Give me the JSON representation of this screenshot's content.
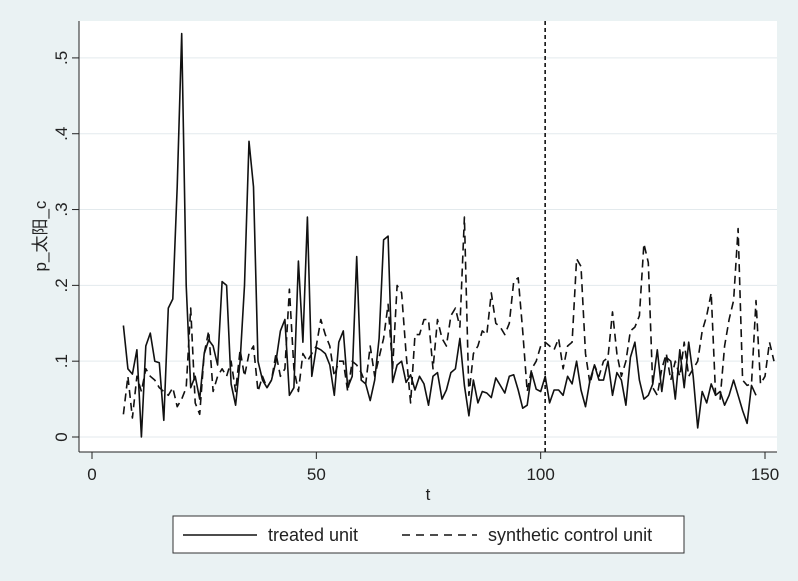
{
  "chart_data": {
    "type": "line",
    "title": "",
    "xlabel": "t",
    "ylabel": "p_太阳_c",
    "xlim": [
      0,
      150
    ],
    "ylim": [
      0,
      0.55
    ],
    "xticks": [
      0,
      50,
      100,
      150
    ],
    "xtick_labels": [
      "0",
      "50",
      "100",
      "150"
    ],
    "yticks": [
      0,
      0.1,
      0.2,
      0.3,
      0.4,
      0.5
    ],
    "ytick_labels": [
      "0",
      ".1",
      ".2",
      ".3",
      ".4",
      ".5"
    ],
    "grid": true,
    "vline": 101,
    "x_start": 7,
    "series": [
      {
        "name": "treated unit",
        "style": "solid",
        "color": "#111111",
        "values": [
          0.147,
          0.09,
          0.083,
          0.115,
          0.0,
          0.12,
          0.137,
          0.1,
          0.098,
          0.022,
          0.17,
          0.182,
          0.33,
          0.532,
          0.2,
          0.065,
          0.08,
          0.05,
          0.11,
          0.128,
          0.12,
          0.095,
          0.205,
          0.2,
          0.07,
          0.042,
          0.1,
          0.2,
          0.39,
          0.33,
          0.1,
          0.075,
          0.065,
          0.075,
          0.1,
          0.14,
          0.155,
          0.055,
          0.065,
          0.232,
          0.125,
          0.29,
          0.08,
          0.118,
          0.115,
          0.11,
          0.095,
          0.055,
          0.125,
          0.14,
          0.065,
          0.08,
          0.238,
          0.075,
          0.07,
          0.048,
          0.075,
          0.13,
          0.26,
          0.265,
          0.072,
          0.095,
          0.1,
          0.072,
          0.082,
          0.062,
          0.08,
          0.07,
          0.042,
          0.08,
          0.085,
          0.05,
          0.062,
          0.085,
          0.09,
          0.13,
          0.068,
          0.028,
          0.075,
          0.045,
          0.06,
          0.058,
          0.052,
          0.078,
          0.068,
          0.058,
          0.08,
          0.082,
          0.062,
          0.038,
          0.042,
          0.085,
          0.063,
          0.06,
          0.08,
          0.045,
          0.062,
          0.062,
          0.055,
          0.08,
          0.07,
          0.1,
          0.062,
          0.04,
          0.075,
          0.095,
          0.075,
          0.075,
          0.1,
          0.055,
          0.085,
          0.075,
          0.042,
          0.105,
          0.125,
          0.075,
          0.05,
          0.055,
          0.07,
          0.115,
          0.06,
          0.105,
          0.1,
          0.05,
          0.115,
          0.065,
          0.125,
          0.08,
          0.012,
          0.06,
          0.045,
          0.07,
          0.055,
          0.06,
          0.042,
          0.055,
          0.075,
          0.055,
          0.035,
          0.018,
          0.068,
          0.055
        ]
      },
      {
        "name": "synthetic control unit",
        "style": "dashed",
        "color": "#111111",
        "values": [
          0.03,
          0.08,
          0.025,
          0.08,
          0.06,
          0.09,
          0.08,
          0.075,
          0.065,
          0.06,
          0.055,
          0.065,
          0.04,
          0.05,
          0.065,
          0.17,
          0.045,
          0.03,
          0.11,
          0.14,
          0.06,
          0.08,
          0.09,
          0.08,
          0.1,
          0.06,
          0.115,
          0.08,
          0.11,
          0.12,
          0.06,
          0.08,
          0.065,
          0.075,
          0.11,
          0.08,
          0.09,
          0.195,
          0.09,
          0.06,
          0.11,
          0.1,
          0.11,
          0.12,
          0.155,
          0.135,
          0.12,
          0.08,
          0.1,
          0.1,
          0.06,
          0.1,
          0.095,
          0.085,
          0.07,
          0.12,
          0.08,
          0.105,
          0.13,
          0.175,
          0.09,
          0.2,
          0.19,
          0.11,
          0.045,
          0.135,
          0.135,
          0.155,
          0.155,
          0.09,
          0.155,
          0.13,
          0.12,
          0.16,
          0.17,
          0.145,
          0.29,
          0.055,
          0.11,
          0.12,
          0.14,
          0.135,
          0.19,
          0.15,
          0.145,
          0.135,
          0.15,
          0.205,
          0.21,
          0.14,
          0.06,
          0.09,
          0.1,
          0.12,
          0.125,
          0.12,
          0.115,
          0.13,
          0.09,
          0.12,
          0.125,
          0.235,
          0.225,
          0.11,
          0.07,
          0.095,
          0.08,
          0.1,
          0.105,
          0.165,
          0.11,
          0.08,
          0.1,
          0.14,
          0.145,
          0.16,
          0.255,
          0.23,
          0.065,
          0.055,
          0.09,
          0.11,
          0.075,
          0.1,
          0.08,
          0.125,
          0.08,
          0.09,
          0.1,
          0.14,
          0.16,
          0.19,
          0.055,
          0.05,
          0.12,
          0.155,
          0.18,
          0.275,
          0.075,
          0.068,
          0.07,
          0.18,
          0.07,
          0.08,
          0.125,
          0.1
        ]
      }
    ],
    "legend": {
      "position": "bottom",
      "labels": [
        "treated unit",
        "synthetic control unit"
      ]
    }
  },
  "colors": {
    "background": "#eaf2f3",
    "plot_area": "#ffffff",
    "grid": "#e3eaed",
    "line": "#111111"
  }
}
